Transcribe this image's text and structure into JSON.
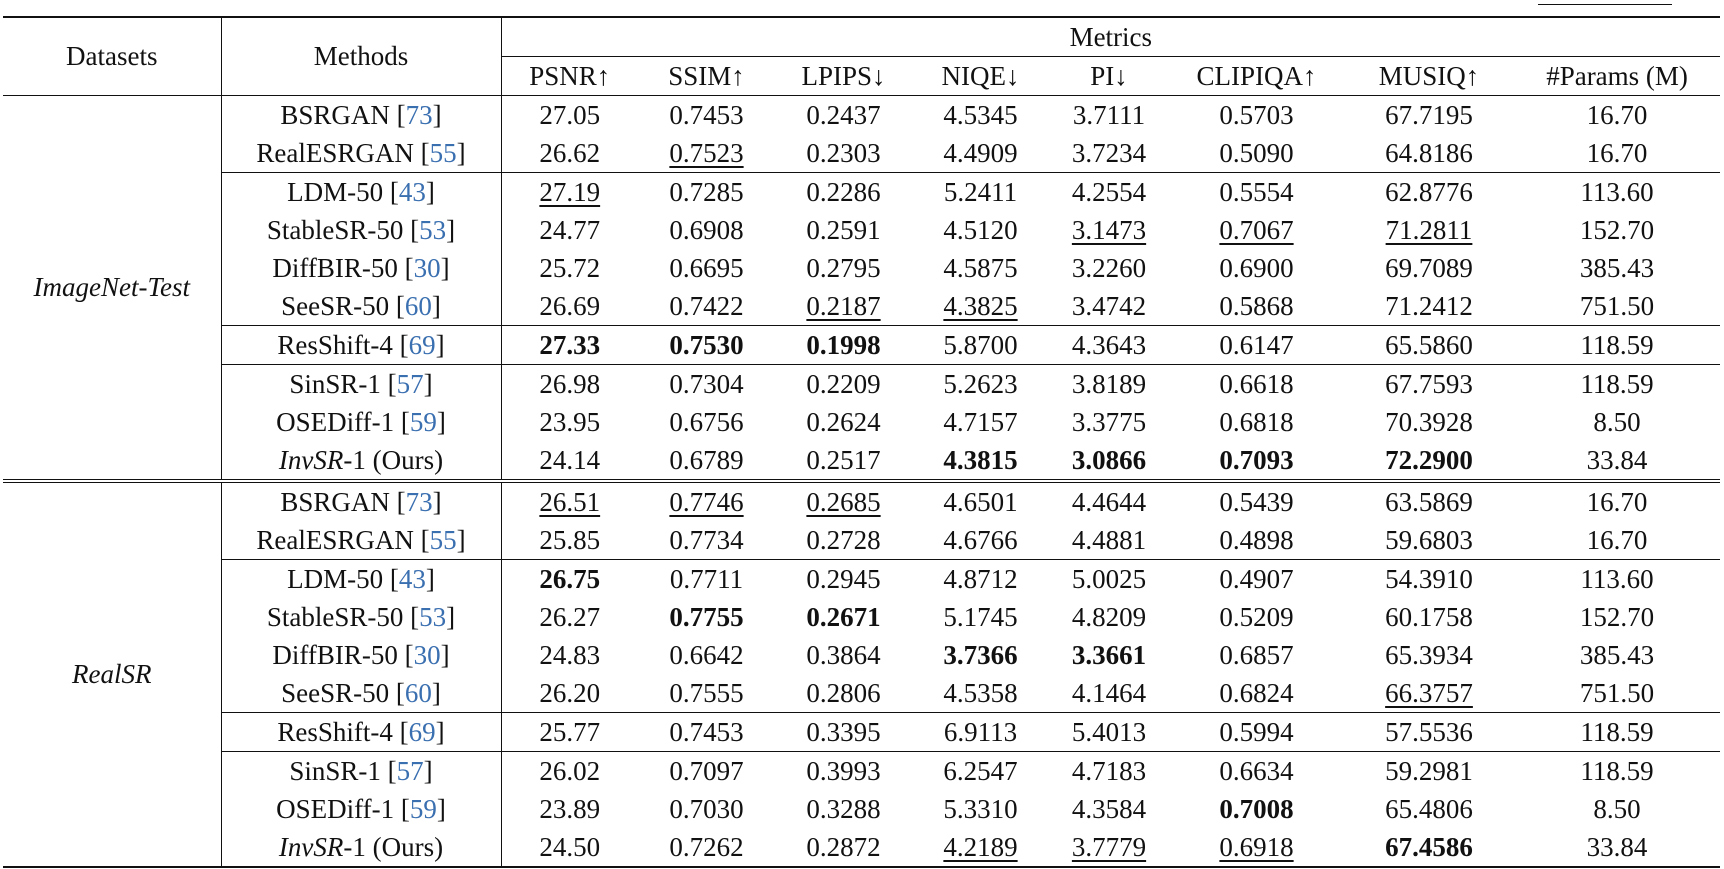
{
  "header": {
    "datasets_label": "Datasets",
    "methods_label": "Methods",
    "metrics_group_label": "Metrics",
    "metric_columns": [
      "PSNR↑",
      "SSIM↑",
      "LPIPS↓",
      "NIQE↓",
      "PI↓",
      "CLIPIQA↑",
      "MUSIQ↑",
      "#Params (M)"
    ]
  },
  "legend": {
    "best_style": "bold",
    "second_best_style": "underline"
  },
  "groups": [
    {
      "dataset": "ImageNet-Test",
      "rows": [
        {
          "method": "BSRGAN",
          "method_italic_part": "",
          "ref": "73",
          "values": [
            "27.05",
            "0.7453",
            "0.2437",
            "4.5345",
            "3.7111",
            "0.5703",
            "67.7195",
            "16.70"
          ],
          "style": [
            "",
            "",
            "",
            "",
            "",
            "",
            "",
            ""
          ]
        },
        {
          "method": "RealESRGAN",
          "method_italic_part": "",
          "ref": "55",
          "values": [
            "26.62",
            "0.7523",
            "0.2303",
            "4.4909",
            "3.7234",
            "0.5090",
            "64.8186",
            "16.70"
          ],
          "style": [
            "",
            "second",
            "",
            "",
            "",
            "",
            "",
            ""
          ]
        },
        {
          "method": "LDM-50",
          "method_italic_part": "",
          "ref": "43",
          "values": [
            "27.19",
            "0.7285",
            "0.2286",
            "5.2411",
            "4.2554",
            "0.5554",
            "62.8776",
            "113.60"
          ],
          "style": [
            "second",
            "",
            "",
            "",
            "",
            "",
            "",
            ""
          ],
          "rule_above": true
        },
        {
          "method": "StableSR-50",
          "method_italic_part": "",
          "ref": "53",
          "values": [
            "24.77",
            "0.6908",
            "0.2591",
            "4.5120",
            "3.1473",
            "0.7067",
            "71.2811",
            "152.70"
          ],
          "style": [
            "",
            "",
            "",
            "",
            "second",
            "second",
            "second",
            ""
          ]
        },
        {
          "method": "DiffBIR-50",
          "method_italic_part": "",
          "ref": "30",
          "values": [
            "25.72",
            "0.6695",
            "0.2795",
            "4.5875",
            "3.2260",
            "0.6900",
            "69.7089",
            "385.43"
          ],
          "style": [
            "",
            "",
            "",
            "",
            "",
            "",
            "",
            ""
          ]
        },
        {
          "method": "SeeSR-50",
          "method_italic_part": "",
          "ref": "60",
          "values": [
            "26.69",
            "0.7422",
            "0.2187",
            "4.3825",
            "3.4742",
            "0.5868",
            "71.2412",
            "751.50"
          ],
          "style": [
            "",
            "",
            "second",
            "second",
            "",
            "",
            "",
            ""
          ]
        },
        {
          "method": "ResShift-4",
          "method_italic_part": "",
          "ref": "69",
          "values": [
            "27.33",
            "0.7530",
            "0.1998",
            "5.8700",
            "4.3643",
            "0.6147",
            "65.5860",
            "118.59"
          ],
          "style": [
            "best",
            "best",
            "best",
            "",
            "",
            "",
            "",
            ""
          ],
          "rule_above": true
        },
        {
          "method": "SinSR-1",
          "method_italic_part": "",
          "ref": "57",
          "values": [
            "26.98",
            "0.7304",
            "0.2209",
            "5.2623",
            "3.8189",
            "0.6618",
            "67.7593",
            "118.59"
          ],
          "style": [
            "",
            "",
            "",
            "",
            "",
            "",
            "",
            ""
          ],
          "rule_above": true
        },
        {
          "method": "OSEDiff-1",
          "method_italic_part": "",
          "ref": "59",
          "values": [
            "23.95",
            "0.6756",
            "0.2624",
            "4.7157",
            "3.3775",
            "0.6818",
            "70.3928",
            "8.50"
          ],
          "style": [
            "",
            "",
            "",
            "",
            "",
            "",
            "",
            ""
          ]
        },
        {
          "method": "-1 (Ours)",
          "method_italic_part": "InvSR",
          "ref": "",
          "values": [
            "24.14",
            "0.6789",
            "0.2517",
            "4.3815",
            "3.0866",
            "0.7093",
            "72.2900",
            "33.84"
          ],
          "style": [
            "",
            "",
            "",
            "best",
            "best",
            "best",
            "best",
            ""
          ]
        }
      ]
    },
    {
      "dataset": "RealSR",
      "rows": [
        {
          "method": "BSRGAN",
          "method_italic_part": "",
          "ref": "73",
          "values": [
            "26.51",
            "0.7746",
            "0.2685",
            "4.6501",
            "4.4644",
            "0.5439",
            "63.5869",
            "16.70"
          ],
          "style": [
            "second",
            "second",
            "second",
            "",
            "",
            "",
            "",
            ""
          ]
        },
        {
          "method": "RealESRGAN",
          "method_italic_part": "",
          "ref": "55",
          "values": [
            "25.85",
            "0.7734",
            "0.2728",
            "4.6766",
            "4.4881",
            "0.4898",
            "59.6803",
            "16.70"
          ],
          "style": [
            "",
            "",
            "",
            "",
            "",
            "",
            "",
            ""
          ]
        },
        {
          "method": "LDM-50",
          "method_italic_part": "",
          "ref": "43",
          "values": [
            "26.75",
            "0.7711",
            "0.2945",
            "4.8712",
            "5.0025",
            "0.4907",
            "54.3910",
            "113.60"
          ],
          "style": [
            "best",
            "",
            "",
            "",
            "",
            "",
            "",
            ""
          ],
          "rule_above": true
        },
        {
          "method": "StableSR-50",
          "method_italic_part": "",
          "ref": "53",
          "values": [
            "26.27",
            "0.7755",
            "0.2671",
            "5.1745",
            "4.8209",
            "0.5209",
            "60.1758",
            "152.70"
          ],
          "style": [
            "",
            "best",
            "best",
            "",
            "",
            "",
            "",
            ""
          ]
        },
        {
          "method": "DiffBIR-50",
          "method_italic_part": "",
          "ref": "30",
          "values": [
            "24.83",
            "0.6642",
            "0.3864",
            "3.7366",
            "3.3661",
            "0.6857",
            "65.3934",
            "385.43"
          ],
          "style": [
            "",
            "",
            "",
            "best",
            "best",
            "",
            "",
            ""
          ]
        },
        {
          "method": "SeeSR-50",
          "method_italic_part": "",
          "ref": "60",
          "values": [
            "26.20",
            "0.7555",
            "0.2806",
            "4.5358",
            "4.1464",
            "0.6824",
            "66.3757",
            "751.50"
          ],
          "style": [
            "",
            "",
            "",
            "",
            "",
            "",
            "second",
            ""
          ]
        },
        {
          "method": "ResShift-4",
          "method_italic_part": "",
          "ref": "69",
          "values": [
            "25.77",
            "0.7453",
            "0.3395",
            "6.9113",
            "5.4013",
            "0.5994",
            "57.5536",
            "118.59"
          ],
          "style": [
            "",
            "",
            "",
            "",
            "",
            "",
            "",
            ""
          ],
          "rule_above": true
        },
        {
          "method": "SinSR-1",
          "method_italic_part": "",
          "ref": "57",
          "values": [
            "26.02",
            "0.7097",
            "0.3993",
            "6.2547",
            "4.7183",
            "0.6634",
            "59.2981",
            "118.59"
          ],
          "style": [
            "",
            "",
            "",
            "",
            "",
            "",
            "",
            ""
          ],
          "rule_above": true
        },
        {
          "method": "OSEDiff-1",
          "method_italic_part": "",
          "ref": "59",
          "values": [
            "23.89",
            "0.7030",
            "0.3288",
            "5.3310",
            "4.3584",
            "0.7008",
            "65.4806",
            "8.50"
          ],
          "style": [
            "",
            "",
            "",
            "",
            "",
            "best",
            "",
            ""
          ]
        },
        {
          "method": "-1 (Ours)",
          "method_italic_part": "InvSR",
          "ref": "",
          "values": [
            "24.50",
            "0.7262",
            "0.2872",
            "4.2189",
            "3.7779",
            "0.6918",
            "67.4586",
            "33.84"
          ],
          "style": [
            "",
            "",
            "",
            "second",
            "second",
            "second",
            "best",
            ""
          ]
        }
      ]
    }
  ]
}
